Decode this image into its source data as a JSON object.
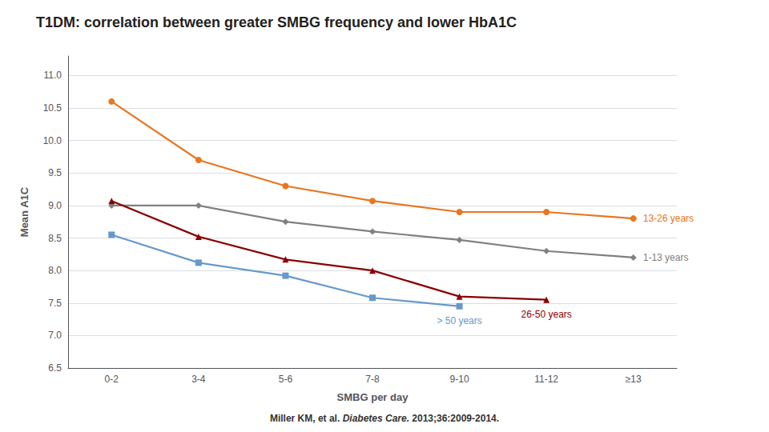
{
  "chart_data": {
    "type": "line",
    "title": "T1DM: correlation between greater SMBG frequency and lower HbA1C",
    "xlabel": "SMBG per day",
    "ylabel": "Mean A1C",
    "categories": [
      "0-2",
      "3-4",
      "5-6",
      "7-8",
      "9-10",
      "11-12",
      "≥13"
    ],
    "series": [
      {
        "name": "13-26 years",
        "color": "#E87722",
        "marker": "circle",
        "values": [
          10.6,
          9.7,
          9.3,
          9.07,
          8.9,
          8.9,
          8.8
        ]
      },
      {
        "name": "1-13 years",
        "color": "#808080",
        "marker": "diamond",
        "values": [
          9.0,
          9.0,
          8.75,
          8.6,
          8.47,
          8.3,
          8.2
        ]
      },
      {
        "name": "26-50 years",
        "color": "#8B0000",
        "marker": "triangle",
        "values": [
          9.07,
          8.52,
          8.17,
          8.0,
          7.6,
          7.55,
          null
        ]
      },
      {
        "name": "> 50 years",
        "color": "#6699CC",
        "marker": "square",
        "values": [
          8.55,
          8.12,
          7.92,
          7.58,
          7.45,
          null,
          null
        ]
      }
    ],
    "ylim": [
      6.5,
      11.3
    ],
    "yticks": [
      6.5,
      {
        "value": 7.0,
        "label": "7.0"
      },
      7.5,
      {
        "value": 8.0,
        "label": "8.0"
      },
      8.5,
      {
        "value": 9.0,
        "label": "9.0"
      },
      9.5,
      {
        "value": 10.0,
        "label": "10.0"
      },
      10.5,
      {
        "value": 11.0,
        "label": "11.0"
      }
    ],
    "grid": true,
    "annotations": [
      "Miller KM, et al.",
      "Diabetes Care.",
      "2013;36:2009-2014."
    ]
  }
}
